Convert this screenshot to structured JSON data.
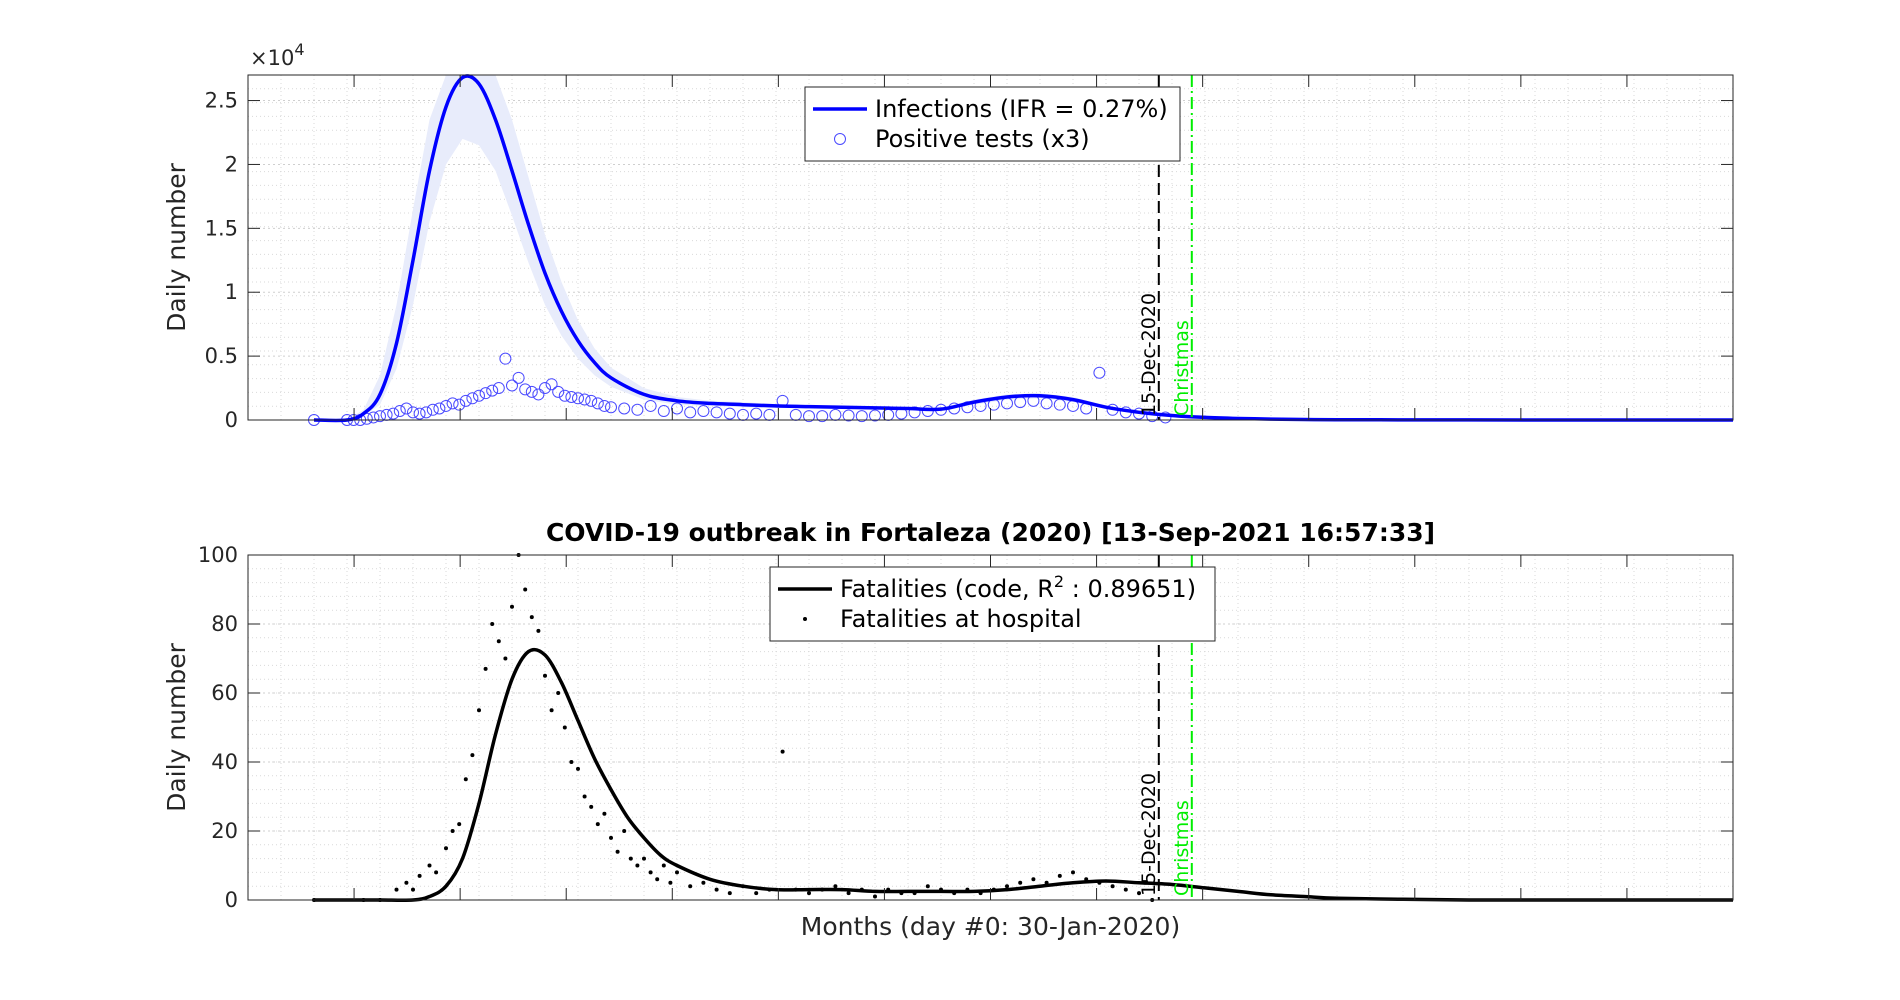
{
  "chart_data": [
    {
      "type": "line",
      "ylabel": "Daily number",
      "y_exponent_label": "×10",
      "y_exponent_power": "4",
      "ylim": [
        0,
        27000
      ],
      "yticks": [
        0,
        5000,
        10000,
        15000,
        20000,
        25000
      ],
      "ytick_labels": [
        "0",
        "0.5",
        "1",
        "1.5",
        "2",
        "2.5"
      ],
      "xlim": [
        -30,
        420
      ],
      "grid": true,
      "legend_position": "top-center",
      "colors": {
        "line": "#0000ff",
        "band": "#e8ecfb",
        "markers": "#4a4aff"
      },
      "series": [
        {
          "name": "Infections (IFR = 0.27%)",
          "x": [
            -10,
            0,
            5,
            10,
            15,
            20,
            25,
            30,
            35,
            40,
            45,
            50,
            55,
            60,
            65,
            70,
            75,
            80,
            90,
            100,
            110,
            120,
            130,
            140,
            150,
            160,
            170,
            180,
            190,
            200,
            210,
            220,
            230,
            240,
            250,
            260,
            270,
            280,
            290,
            300,
            320,
            340,
            360,
            380,
            400,
            420
          ],
          "values": [
            0,
            0,
            500,
            2000,
            6000,
            12500,
            19500,
            24500,
            26800,
            26300,
            23500,
            19500,
            15300,
            11500,
            8500,
            6200,
            4500,
            3300,
            2000,
            1500,
            1300,
            1200,
            1100,
            1050,
            1000,
            950,
            900,
            850,
            1400,
            1800,
            1900,
            1600,
            1000,
            600,
            350,
            200,
            120,
            70,
            40,
            25,
            10,
            5,
            0,
            0,
            0,
            0
          ],
          "band_upper": [
            0,
            0,
            800,
            3500,
            9000,
            16500,
            23500,
            27000,
            27000,
            27000,
            27000,
            23500,
            19000,
            14500,
            10800,
            7800,
            5600,
            4100,
            2500,
            1800,
            1500,
            1400,
            1250,
            1150,
            1100,
            1050,
            1000,
            950,
            1600,
            2000,
            2100,
            1800,
            1150,
            700,
            420,
            250,
            150,
            90,
            50,
            30,
            12,
            6,
            0,
            0,
            0,
            0
          ],
          "band_lower": [
            0,
            0,
            300,
            1200,
            4000,
            9000,
            15500,
            20000,
            22000,
            21500,
            19500,
            16000,
            12300,
            9000,
            6600,
            4800,
            3500,
            2600,
            1600,
            1200,
            1100,
            1000,
            950,
            950,
            900,
            850,
            800,
            750,
            1200,
            1600,
            1700,
            1400,
            850,
            500,
            290,
            160,
            95,
            55,
            30,
            20,
            8,
            4,
            0,
            0,
            0,
            0
          ]
        },
        {
          "name": "Positive tests (x3)",
          "style": "circles",
          "x": [
            -10,
            0,
            2,
            4,
            6,
            8,
            10,
            12,
            14,
            16,
            18,
            20,
            22,
            24,
            26,
            28,
            30,
            32,
            34,
            36,
            38,
            40,
            42,
            44,
            46,
            48,
            50,
            52,
            54,
            56,
            58,
            60,
            62,
            64,
            66,
            68,
            70,
            72,
            74,
            76,
            78,
            80,
            84,
            88,
            92,
            96,
            100,
            104,
            108,
            112,
            116,
            120,
            124,
            128,
            132,
            136,
            140,
            144,
            148,
            152,
            156,
            160,
            164,
            168,
            172,
            176,
            180,
            184,
            188,
            192,
            196,
            200,
            204,
            208,
            212,
            216,
            220,
            224,
            228,
            232,
            236,
            240,
            244,
            248
          ],
          "values": [
            0,
            0,
            0,
            0,
            100,
            200,
            300,
            400,
            500,
            700,
            900,
            600,
            500,
            600,
            800,
            900,
            1100,
            1300,
            1200,
            1500,
            1700,
            1900,
            2100,
            2300,
            2500,
            4800,
            2700,
            3300,
            2400,
            2200,
            2000,
            2500,
            2800,
            2200,
            1900,
            1800,
            1700,
            1600,
            1500,
            1300,
            1100,
            1000,
            900,
            800,
            1100,
            700,
            900,
            600,
            700,
            600,
            500,
            400,
            500,
            400,
            1500,
            400,
            300,
            300,
            400,
            350,
            300,
            350,
            400,
            500,
            600,
            700,
            800,
            900,
            1000,
            1100,
            1200,
            1300,
            1400,
            1500,
            1300,
            1200,
            1100,
            900,
            3700,
            800,
            600,
            500,
            300,
            200
          ]
        }
      ],
      "vlines": [
        {
          "x": 246,
          "label": "15-Dec-2020",
          "color": "#000000",
          "style": "dashed"
        },
        {
          "x": 256,
          "label": "Christmas",
          "color": "#00ee00",
          "style": "dashdot"
        }
      ]
    },
    {
      "type": "line",
      "title": "COVID-19 outbreak in Fortaleza (2020) [13-Sep-2021 16:57:33]",
      "xlabel": "Months (day #0: 30-Jan-2020)",
      "ylabel": "Daily number",
      "ylim": [
        0,
        100
      ],
      "yticks": [
        0,
        20,
        40,
        60,
        80,
        100
      ],
      "ytick_labels": [
        "0",
        "20",
        "40",
        "60",
        "80",
        "100"
      ],
      "xlim": [
        -30,
        420
      ],
      "grid": true,
      "legend_position": "top-center",
      "colors": {
        "line": "#000000",
        "markers": "#000000"
      },
      "series": [
        {
          "name": "Fatalities (code, R",
          "name_sup": "2",
          "name_tail": " : 0.89651)",
          "x": [
            -10,
            0,
            10,
            20,
            25,
            30,
            35,
            40,
            45,
            50,
            55,
            60,
            65,
            70,
            75,
            80,
            85,
            90,
            95,
            100,
            110,
            120,
            130,
            140,
            150,
            160,
            170,
            180,
            190,
            200,
            210,
            220,
            230,
            240,
            250,
            260,
            270,
            280,
            290,
            300,
            320,
            340,
            360,
            380,
            400,
            420
          ],
          "values": [
            0,
            0,
            0,
            0,
            1,
            4,
            12,
            28,
            48,
            64,
            72,
            71,
            63,
            52,
            41,
            32,
            24,
            18,
            13,
            10,
            6,
            4,
            3,
            3,
            3,
            2.5,
            2.5,
            2.5,
            2.5,
            3,
            4,
            5,
            5.5,
            5,
            4.5,
            3.5,
            2.5,
            1.5,
            1,
            0.5,
            0.2,
            0,
            0,
            0,
            0,
            0
          ]
        },
        {
          "name": "Fatalities at hospital",
          "style": "dots",
          "x": [
            -10,
            5,
            10,
            15,
            18,
            20,
            22,
            25,
            27,
            30,
            32,
            34,
            36,
            38,
            40,
            42,
            44,
            46,
            48,
            50,
            52,
            54,
            56,
            58,
            60,
            62,
            64,
            66,
            68,
            70,
            72,
            74,
            76,
            78,
            80,
            82,
            84,
            86,
            88,
            90,
            92,
            94,
            96,
            98,
            100,
            104,
            108,
            112,
            116,
            120,
            124,
            128,
            132,
            136,
            140,
            144,
            148,
            152,
            156,
            160,
            164,
            168,
            172,
            176,
            180,
            184,
            188,
            192,
            196,
            200,
            204,
            208,
            212,
            216,
            220,
            224,
            228,
            232,
            236,
            240,
            244
          ],
          "values": [
            0,
            0,
            0,
            3,
            5,
            3,
            7,
            10,
            8,
            15,
            20,
            22,
            35,
            42,
            55,
            67,
            80,
            75,
            70,
            85,
            100,
            90,
            82,
            78,
            65,
            55,
            60,
            50,
            40,
            38,
            30,
            27,
            22,
            25,
            18,
            14,
            20,
            12,
            10,
            12,
            8,
            6,
            10,
            5,
            8,
            4,
            5,
            3,
            2,
            4,
            2,
            3,
            43,
            3,
            2,
            3,
            4,
            2,
            3,
            1,
            3,
            2,
            2,
            4,
            3,
            2,
            3,
            2,
            3,
            4,
            5,
            6,
            5,
            7,
            8,
            6,
            5,
            4,
            3,
            2,
            0
          ]
        }
      ],
      "vlines": [
        {
          "x": 246,
          "label": "15-Dec-2020",
          "color": "#000000",
          "style": "dashed"
        },
        {
          "x": 256,
          "label": "Christmas",
          "color": "#00ee00",
          "style": "dashdot"
        }
      ]
    }
  ]
}
